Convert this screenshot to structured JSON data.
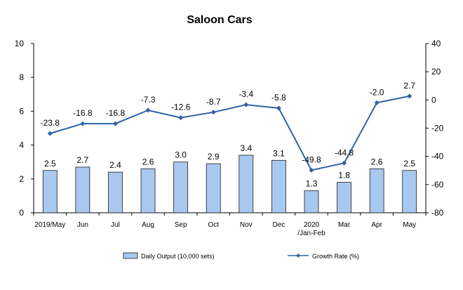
{
  "chart_data": {
    "type": "bar",
    "title": "Saloon Cars",
    "categories": [
      "2019/May",
      "Jun",
      "Jul",
      "Aug",
      "Sep",
      "Oct",
      "Nov",
      "Dec",
      "2020 /Jan-Feb",
      "Mar",
      "Apr",
      "May"
    ],
    "category_lines": [
      [
        "2019/May"
      ],
      [
        "Jun"
      ],
      [
        "Jul"
      ],
      [
        "Aug"
      ],
      [
        "Sep"
      ],
      [
        "Oct"
      ],
      [
        "Nov"
      ],
      [
        "Dec"
      ],
      [
        "2020",
        "/Jan-Feb"
      ],
      [
        "Mar"
      ],
      [
        "Apr"
      ],
      [
        "May"
      ]
    ],
    "series": [
      {
        "name": "Daily Output (10,000 sets)",
        "type": "bar",
        "axis": "left",
        "color": "#a9c8f0",
        "border_color": "#1a1a1a",
        "values": [
          2.5,
          2.7,
          2.4,
          2.6,
          3.0,
          2.9,
          3.4,
          3.1,
          1.3,
          1.8,
          2.6,
          2.5
        ],
        "labels": [
          "2.5",
          "2.7",
          "2.4",
          "2.6",
          "3.0",
          "2.9",
          "3.4",
          "3.1",
          "1.3",
          "1.8",
          "2.6",
          "2.5"
        ]
      },
      {
        "name": "Growth Rate (%)",
        "type": "line",
        "axis": "right",
        "color": "#2f62a8",
        "values": [
          -23.8,
          -16.8,
          -16.8,
          -7.3,
          -12.6,
          -8.7,
          -3.4,
          -5.8,
          -49.8,
          -44.8,
          -2.0,
          2.7
        ],
        "labels": [
          "-23.8",
          "-16.8",
          "-16.8",
          "-7.3",
          "-12.6",
          "-8.7",
          "-3.4",
          "-5.8",
          "-49.8",
          "-44.8",
          "-2.0",
          "2.7"
        ]
      }
    ],
    "y_left": {
      "min": 0,
      "max": 10,
      "step": 2,
      "ticks": [
        "0",
        "2",
        "4",
        "6",
        "8",
        "10"
      ]
    },
    "y_right": {
      "min": -80,
      "max": 40,
      "step": 20,
      "ticks": [
        "-80",
        "-60",
        "-40",
        "-20",
        "0",
        "20",
        "40"
      ]
    },
    "xlabel": "",
    "ylabel": "",
    "grid": false,
    "legend_position": "bottom"
  }
}
